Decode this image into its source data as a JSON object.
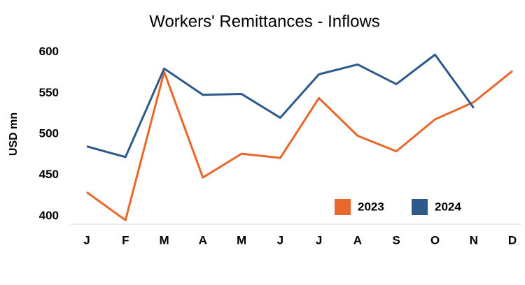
{
  "chart_data": {
    "type": "line",
    "title": "Workers' Remittances - Inflows",
    "y_label": "USD mn",
    "categories": [
      "J",
      "F",
      "M",
      "A",
      "M",
      "J",
      "J",
      "A",
      "S",
      "O",
      "N",
      "D"
    ],
    "series": [
      {
        "name": "2023",
        "color": "#e8672a",
        "values": [
          429,
          395,
          576,
          447,
          476,
          471,
          544,
          498,
          479,
          518,
          539,
          577
        ]
      },
      {
        "name": "2024",
        "color": "#2d5a8a",
        "values": [
          485,
          472,
          580,
          548,
          549,
          520,
          573,
          585,
          561,
          597,
          532,
          null
        ]
      }
    ],
    "ylim": [
      390,
      610
    ],
    "yticks": [
      400,
      450,
      500,
      550,
      600
    ],
    "grid": false,
    "legend": "bottom-right"
  }
}
